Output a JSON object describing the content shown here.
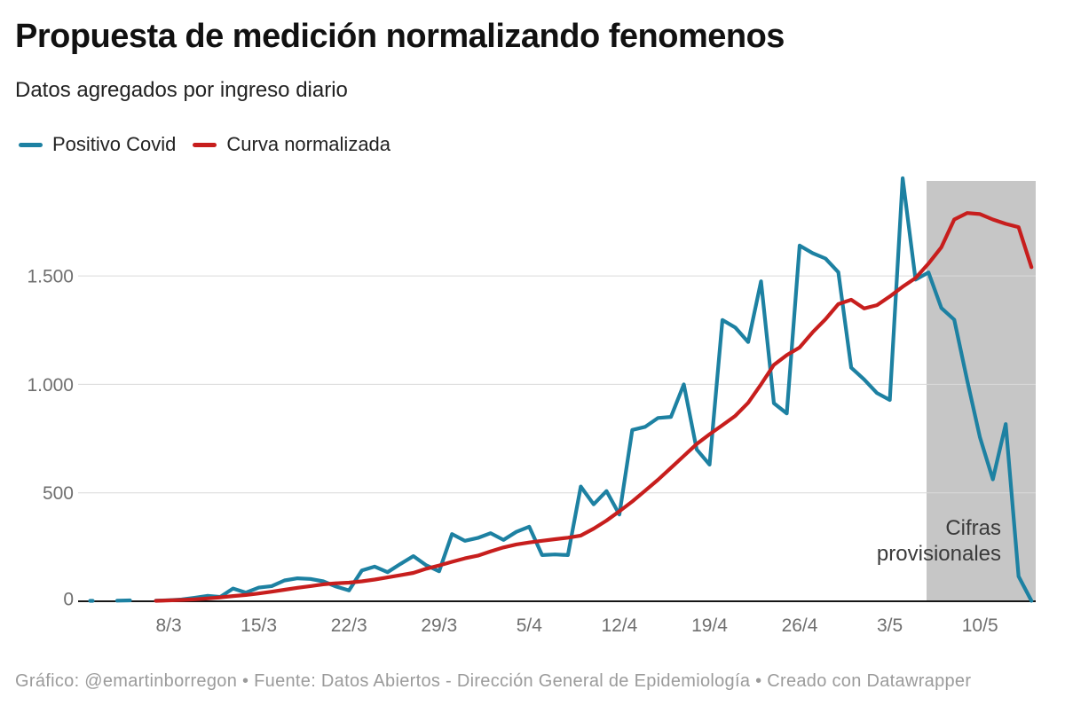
{
  "header": {
    "title": "Propuesta de medición normalizando fenomenos",
    "subtitle": "Datos agregados por ingreso diario"
  },
  "footer": {
    "text": "Gráfico: @emartinborregon • Fuente: Datos Abiertos - Dirección General de Epidemiología • Creado con Datawrapper"
  },
  "chart_data": {
    "type": "line",
    "title": "Propuesta de medición normalizando fenomenos",
    "subtitle": "Datos agregados por ingreso diario",
    "legend_position": "top-left",
    "grid": true,
    "ylim": [
      0,
      2000
    ],
    "y_ticks": [
      {
        "value": 0,
        "label": "0"
      },
      {
        "value": 500,
        "label": "500"
      },
      {
        "value": 1000,
        "label": "1.000"
      },
      {
        "value": 1500,
        "label": "1.500"
      }
    ],
    "x_tick_labels": [
      "8/3",
      "15/3",
      "22/3",
      "29/3",
      "5/4",
      "12/4",
      "19/4",
      "26/4",
      "3/5",
      "10/5"
    ],
    "x": [
      "2/3",
      "3/3",
      "4/3",
      "5/3",
      "6/3",
      "7/3",
      "8/3",
      "9/3",
      "10/3",
      "11/3",
      "12/3",
      "13/3",
      "14/3",
      "15/3",
      "16/3",
      "17/3",
      "18/3",
      "19/3",
      "20/3",
      "21/3",
      "22/3",
      "23/3",
      "24/3",
      "25/3",
      "26/3",
      "27/3",
      "28/3",
      "29/3",
      "30/3",
      "31/3",
      "1/4",
      "2/4",
      "3/4",
      "4/4",
      "5/4",
      "6/4",
      "7/4",
      "8/4",
      "9/4",
      "10/4",
      "11/4",
      "12/4",
      "13/4",
      "14/4",
      "15/4",
      "16/4",
      "17/4",
      "18/4",
      "19/4",
      "20/4",
      "21/4",
      "22/4",
      "23/4",
      "24/4",
      "25/4",
      "26/4",
      "27/4",
      "28/4",
      "29/4",
      "30/4",
      "1/5",
      "2/5",
      "3/5",
      "4/5",
      "5/5",
      "6/5",
      "7/5",
      "8/5",
      "9/5",
      "10/5",
      "11/5",
      "12/5",
      "13/5",
      "14/5"
    ],
    "series": [
      {
        "name": "Positivo Covid",
        "color": "#1d81a2",
        "values": [
          2,
          null,
          3,
          4,
          null,
          3,
          5,
          8,
          16,
          25,
          20,
          59,
          40,
          63,
          70,
          96,
          106,
          103,
          92,
          68,
          50,
          142,
          160,
          134,
          172,
          208,
          166,
          138,
          310,
          279,
          292,
          314,
          283,
          320,
          344,
          213,
          216,
          213,
          529,
          447,
          508,
          400,
          790,
          804,
          845,
          850,
          1000,
          700,
          630,
          1297,
          1262,
          1195,
          1475,
          913,
          866,
          1640,
          1605,
          1580,
          1517,
          1077,
          1023,
          960,
          928,
          1950,
          1483,
          1516,
          1352,
          1298,
          1020,
          755,
          562,
          817,
          115,
          2
        ]
      },
      {
        "name": "Curva normalizada",
        "color": "#c71e1d",
        "values": [
          null,
          null,
          null,
          null,
          null,
          2,
          4,
          6,
          9,
          13,
          18,
          24,
          29,
          36,
          44,
          53,
          62,
          70,
          78,
          83,
          86,
          92,
          100,
          110,
          120,
          131,
          150,
          165,
          182,
          198,
          210,
          230,
          248,
          262,
          271,
          279,
          286,
          293,
          303,
          335,
          372,
          415,
          460,
          510,
          560,
          615,
          670,
          725,
          770,
          812,
          855,
          915,
          1000,
          1090,
          1135,
          1170,
          1240,
          1300,
          1370,
          1390,
          1350,
          1365,
          1405,
          1450,
          1490,
          1557,
          1632,
          1760,
          1790,
          1785,
          1760,
          1740,
          1725,
          1540
        ]
      }
    ],
    "annotation": {
      "text": "Cifras provisionales",
      "lines": [
        "Cifras",
        "provisionales"
      ],
      "color": "#3a3a3a"
    },
    "provisional_band": {
      "from_date": "6/5",
      "color": "#c6c6c6"
    },
    "axis_color": "#161616",
    "grid_color": "#dadada",
    "tick_color": "#6f6f6f"
  }
}
